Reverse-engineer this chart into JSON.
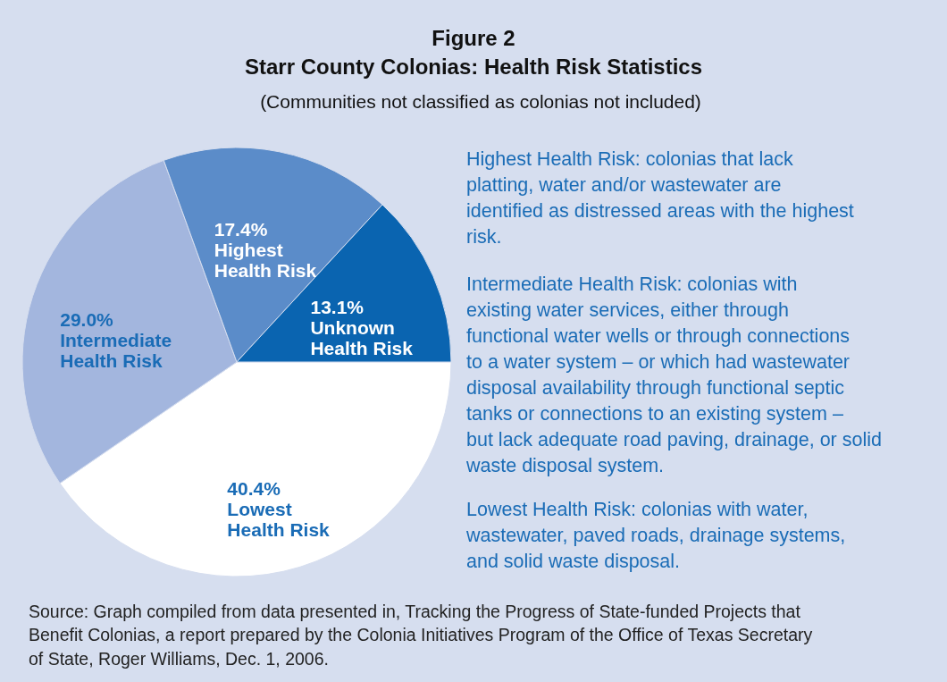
{
  "chart_data": {
    "type": "pie",
    "title": "Figure 2\nStarr County Colonias:  Health Risk Statistics",
    "subtitle": "(Communities not classified as colonias not included)",
    "categories": [
      "Lowest Health Risk",
      "Intermediate Health Risk",
      "Highest Health Risk",
      "Unknown Health Risk"
    ],
    "values": [
      40.4,
      29.0,
      17.4,
      13.1
    ],
    "colors": [
      "#ffffff",
      "#a3b6de",
      "#5b8cc9",
      "#0a64b0"
    ],
    "value_labels": [
      "40.4%",
      "29.0%",
      "17.4%",
      "13.1%"
    ],
    "annotations": [
      "Highest Health Risk:  colonias that lack\nplatting, water and/or wastewater are\nidentified as distressed areas with the highest\nrisk.",
      "Intermediate Health Risk:  colonias with\nexisting water services, either through\nfunctional water wells or through connections\nto a water system – or which had wastewater\ndisposal availability through functional septic\ntanks or connections to an existing system –\nbut lack adequate road paving, drainage, or solid\nwaste disposal system.",
      "Lowest Health Risk:  colonias with water,\nwastewater, paved roads, drainage systems,\nand solid waste disposal.",
      "Source:  Graph compiled from data presented in, Tracking the Progress of State-funded Projects that\nBenefit Colonias, a report prepared by the Colonia Initiatives Program of the Office of Texas Secretary\nof State, Roger Williams, Dec. 1, 2006."
    ]
  }
}
